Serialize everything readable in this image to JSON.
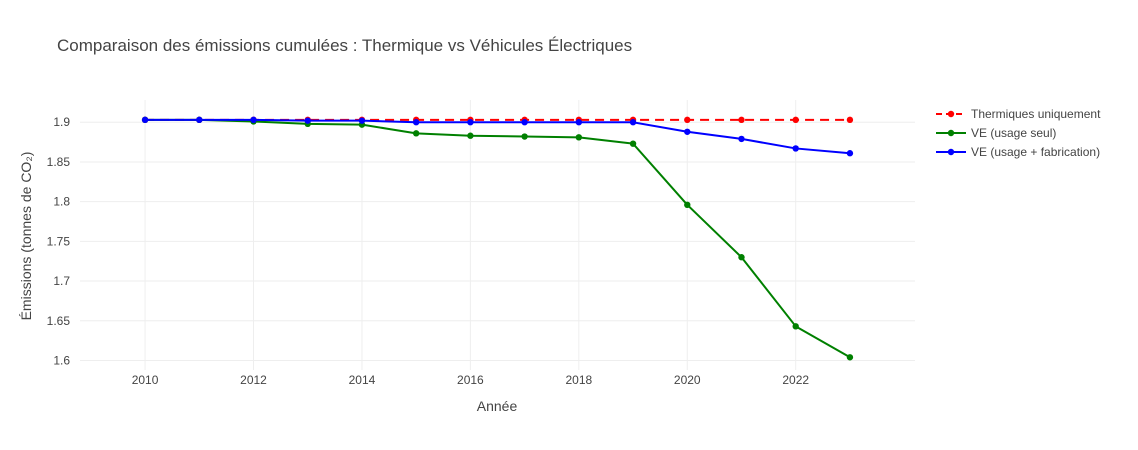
{
  "chart_data": {
    "type": "line",
    "title": "Comparaison des émissions cumulées : Thermique vs Véhicules Électriques",
    "xlabel": "Année",
    "ylabel": "Émissions (tonnes de CO₂)",
    "x": [
      2010,
      2011,
      2012,
      2013,
      2014,
      2015,
      2016,
      2017,
      2018,
      2019,
      2020,
      2021,
      2022,
      2023
    ],
    "xlim": [
      2008.8,
      2024.2
    ],
    "ylim": [
      1.588,
      1.928
    ],
    "x_ticks": [
      2010,
      2012,
      2014,
      2016,
      2018,
      2020,
      2022
    ],
    "y_ticks": [
      1.6,
      1.65,
      1.7,
      1.75,
      1.8,
      1.85,
      1.9
    ],
    "x_tick_labels": [
      "2010",
      "2012",
      "2014",
      "2016",
      "2018",
      "2020",
      "2022"
    ],
    "y_tick_labels": [
      "1.6",
      "1.65",
      "1.7",
      "1.75",
      "1.8",
      "1.85",
      "1.9"
    ],
    "grid": true,
    "legend_position": "top-right",
    "series": [
      {
        "name": "Thermiques uniquement",
        "color": "#ff0000",
        "dash": "dashed",
        "values": [
          1.903,
          1.903,
          1.903,
          1.903,
          1.903,
          1.903,
          1.903,
          1.903,
          1.903,
          1.903,
          1.903,
          1.903,
          1.903,
          1.903
        ]
      },
      {
        "name": "VE (usage seul)",
        "color": "#008000",
        "dash": "solid",
        "values": [
          1.903,
          1.903,
          1.901,
          1.898,
          1.897,
          1.886,
          1.883,
          1.882,
          1.881,
          1.873,
          1.796,
          1.73,
          1.643,
          1.604
        ]
      },
      {
        "name": "VE (usage + fabrication)",
        "color": "#0000ff",
        "dash": "solid",
        "values": [
          1.903,
          1.903,
          1.903,
          1.902,
          1.902,
          1.9,
          1.9,
          1.9,
          1.9,
          1.9,
          1.888,
          1.879,
          1.867,
          1.861
        ]
      }
    ]
  }
}
